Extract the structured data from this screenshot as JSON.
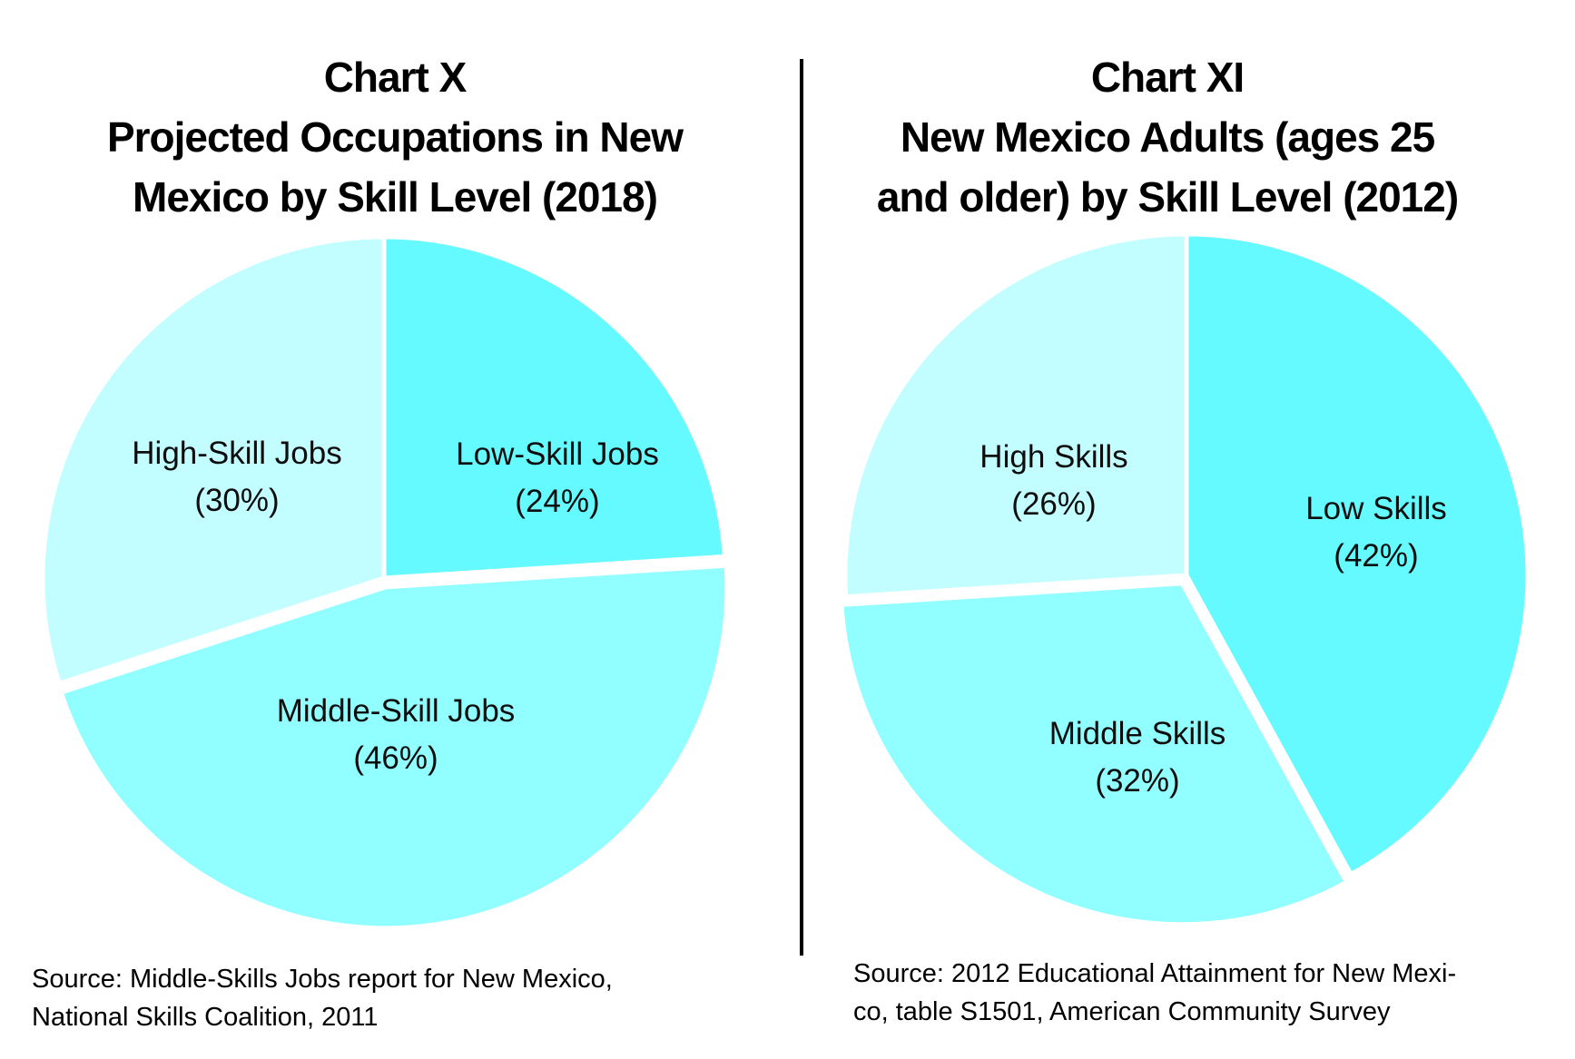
{
  "page": {
    "background_color": "#ffffff",
    "divider_color": "#000000",
    "text_color": "#000000"
  },
  "chart_data": [
    {
      "type": "pie",
      "title": "Chart X Projected Occupations in New Mexico by Skill Level (2018)",
      "title_lines": [
        "Chart X",
        "Projected Occupations in New",
        "Mexico by Skill Level (2018)"
      ],
      "start_angle": "12-oclock",
      "direction": "clockwise",
      "label_position": "inside",
      "border_color": "#ffffff",
      "slices": [
        {
          "label": "Low-Skill Jobs",
          "pct_label": "(24%)",
          "value": 24,
          "color": "#64FAFF",
          "explode": 0
        },
        {
          "label": "Middle-Skill Jobs",
          "pct_label": "(46%)",
          "value": 46,
          "color": "#91FEFF",
          "explode": 10
        },
        {
          "label": "High-Skill Jobs",
          "pct_label": "(30%)",
          "value": 30,
          "color": "#C2FDFF",
          "explode": 0
        }
      ],
      "source_lines": [
        "Source: Middle-Skills Jobs report for New Mexico,",
        "National Skills Coalition, 2011"
      ]
    },
    {
      "type": "pie",
      "title": "Chart XI New Mexico Adults (ages 25 and older) by Skill Level (2012)",
      "title_lines": [
        "Chart XI",
        "New Mexico Adults (ages 25",
        "and older) by Skill Level (2012)"
      ],
      "start_angle": "12-oclock",
      "direction": "clockwise",
      "label_position": "inside",
      "border_color": "#ffffff",
      "slices": [
        {
          "label": "Low Skills",
          "pct_label": "(42%)",
          "value": 42,
          "color": "#64FAFF",
          "explode": 0
        },
        {
          "label": "Middle Skills",
          "pct_label": "(32%)",
          "value": 32,
          "color": "#91FEFF",
          "explode": 10
        },
        {
          "label": "High Skills",
          "pct_label": "(26%)",
          "value": 26,
          "color": "#C2FDFF",
          "explode": 0
        }
      ],
      "source_lines": [
        "Source: 2012 Educational Attainment for New Mexi-",
        "co, table S1501, American Community Survey"
      ]
    }
  ]
}
